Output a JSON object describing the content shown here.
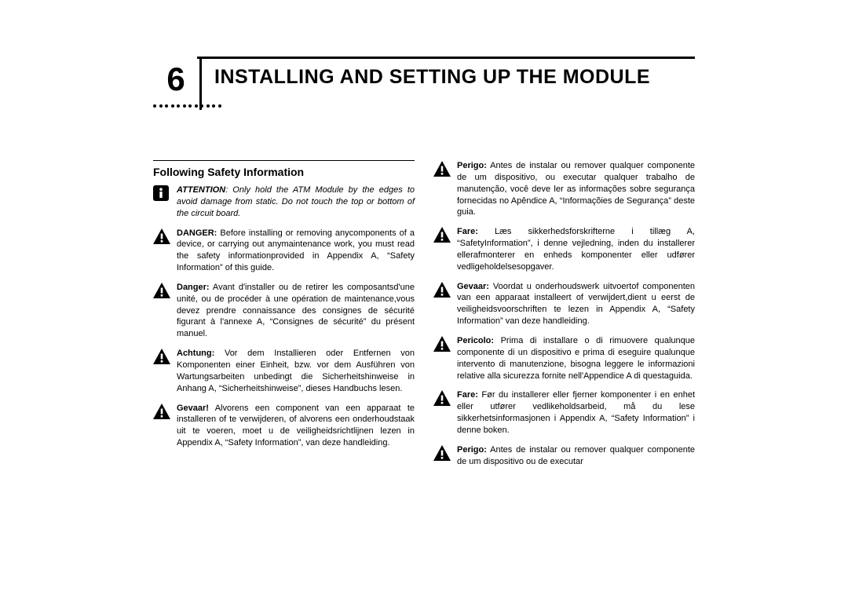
{
  "chapter": {
    "number": "6",
    "title": "INSTALLING AND SETTING UP THE MODULE"
  },
  "section_heading": "Following Safety Information",
  "colors": {
    "text": "#000000",
    "background": "#ffffff",
    "rule": "#000000"
  },
  "typography": {
    "chapter_num_size_pt": 42,
    "chapter_title_size_pt": 25,
    "section_heading_size_pt": 14,
    "body_size_pt": 11
  },
  "left": [
    {
      "icon": "info",
      "lead": "ATTENTION",
      "italic": true,
      "body": ": Only hold the ATM Module by the edges to avoid damage from static. Do not touch the top or bottom of the circuit board."
    },
    {
      "icon": "warning",
      "lead": "DANGER:",
      "body": " Before installing or removing anycomponents of a device, or carrying out anymaintenance work, you must read the safety informationprovided in Appendix A, “Safety Information” of this guide."
    },
    {
      "icon": "warning",
      "lead": "Danger:",
      "body": " Avant d'installer ou de retirer les composantsd'une unité, ou de procéder à une opération de maintenance,vous devez prendre connaissance des consignes de sécurité figurant à l'annexe A, “Consignes de sécurité” du présent manuel."
    },
    {
      "icon": "warning",
      "lead": "Achtung:",
      "body": " Vor dem Installieren oder Entfernen von Komponenten einer Einheit, bzw. vor dem Ausführen von Wartungsarbeiten unbedingt die Sicherheitshinweise in Anhang A, “Sicherheitshinweise”, dieses Handbuchs lesen."
    },
    {
      "icon": "warning",
      "lead": "Gevaar!",
      "body": " Alvorens een component van een apparaat te installeren of te verwijderen, of alvorens een onderhoudstaak uit te voeren, moet u de veiligheidsrichtlijnen lezen in Appendix A, “Safety Information”, van deze handleiding."
    }
  ],
  "right": [
    {
      "icon": "warning",
      "lead": "Perigo:",
      "body": " Antes de instalar ou remover qualquer componente de um dispositivo, ou executar qualquer trabalho de manutenção, você deve ler as informações sobre segurança fornecidas no Apêndice A, “Informaçõies de Segurança” deste guia."
    },
    {
      "icon": "warning",
      "lead": "Fare:",
      "body": " Læs sikkerhedsforskrifterne i tillæg A, “SafetyInformation”, i denne vejledning, inden du installerer ellerafmonterer en enheds komponenter eller udfører vedligeholdelsesopgaver."
    },
    {
      "icon": "warning",
      "lead": "Gevaar:",
      "body": " Voordat u onderhoudswerk uitvoertof componenten van een apparaat installeert of verwijdert,dient u eerst de veiligheidsvoorschriften te lezen in Appendix A, “Safety Information” van deze handleiding."
    },
    {
      "icon": "warning",
      "lead": "Pericolo:",
      "body": " Prima di installare o di rimuovere qualunque componente di un dispositivo e prima di eseguire qualunque intervento di manutenzione, bisogna leggere le informazioni relative alla sicurezza fornite nell'Appendice A di questaguida."
    },
    {
      "icon": "warning",
      "lead": "Fare:",
      "body": " Før du installerer eller fjerner komponenter i en enhet eller utfører vedlikeholdsarbeid, må du lese sikkerhetsinformasjonen i Appendix A, “Safety Information” i denne boken."
    },
    {
      "icon": "warning",
      "lead": "Perigo:",
      "body": " Antes de instalar ou remover qualquer componente de um dispositivo ou de executar"
    }
  ]
}
